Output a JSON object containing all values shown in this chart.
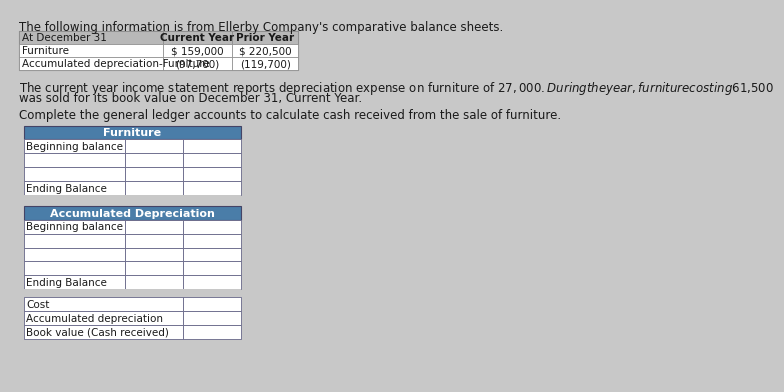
{
  "title_line": "The following information is from Ellerby Company's comparative balance sheets.",
  "table1_col0_header": "At December 31",
  "table1_col1_header": "Current Year",
  "table1_col2_header": "Prior Year",
  "table1_rows": [
    [
      "Furniture",
      "$ 159,000",
      "$ 220,500"
    ],
    [
      "Accumulated depreciation-Furniture",
      "(97,700)",
      "(119,700)"
    ]
  ],
  "paragraph1": "The current year income statement reports depreciation expense on furniture of $27,000. During the year, furniture costing $61,500",
  "paragraph2": "was sold for its book value on December 31, Current Year.",
  "paragraph3": "Complete the general ledger accounts to calculate cash received from the sale of furniture.",
  "ledger_furniture_header": "Furniture",
  "ledger_accum_header": "Accumulated Depreciation",
  "furniture_rows": [
    "Beginning balance",
    "",
    "",
    "Ending Balance"
  ],
  "accum_rows": [
    "Beginning balance",
    "",
    "",
    "",
    "Ending Balance"
  ],
  "bottom_rows": [
    "Cost",
    "Accumulated depreciation",
    "Book value (Cash received)"
  ],
  "header_bg": "#4a7da8",
  "header_text_color": "#ffffff",
  "page_bg": "#c8c8c8",
  "table_bg": "#d8d8d8",
  "cell_bg": "#ffffff",
  "border_color": "#555555",
  "text_color": "#1a1a1a",
  "font_size_title": 8.5,
  "font_size_table": 7.5,
  "font_size_ledger": 7.5,
  "font_size_para": 8.5
}
